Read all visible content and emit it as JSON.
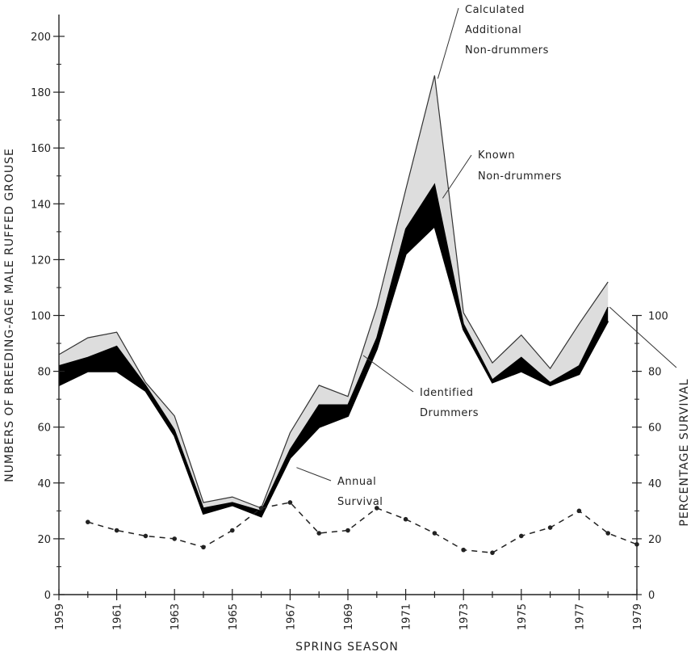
{
  "chart_data": {
    "type": "area",
    "xlabel": "SPRING SEASON",
    "ylabel_left": "NUMBERS OF BREEDING-AGE MALE RUFFED GROUSE",
    "ylabel_right": "PERCENTAGE SURVIVAL",
    "x": [
      1959,
      1960,
      1961,
      1962,
      1963,
      1964,
      1965,
      1966,
      1967,
      1968,
      1969,
      1970,
      1971,
      1972,
      1973,
      1974,
      1975,
      1976,
      1977,
      1978
    ],
    "x_ticks": [
      "1959",
      "1961",
      "1963",
      "1965",
      "1967",
      "1969",
      "1971",
      "1973",
      "1975",
      "1977",
      "1979"
    ],
    "ylim_left": [
      0,
      200
    ],
    "y_ticks_left": [
      "0",
      "20",
      "40",
      "60",
      "80",
      "100",
      "120",
      "140",
      "160",
      "180",
      "200"
    ],
    "ylim_right": [
      0,
      100
    ],
    "y_ticks_right": [
      "0",
      "20",
      "40",
      "60",
      "80",
      "100"
    ],
    "series": [
      {
        "name": "Identified Drummers",
        "axis": "left",
        "values": [
          75,
          80,
          80,
          73,
          57,
          29,
          32,
          28,
          49,
          60,
          64,
          88,
          122,
          132,
          95,
          76,
          80,
          75,
          79,
          98
        ]
      },
      {
        "name": "Known Non-drummers",
        "axis": "left",
        "values": [
          82,
          85,
          89,
          75,
          59,
          31,
          33,
          30,
          52,
          68,
          68,
          92,
          131,
          147,
          97,
          77,
          85,
          76,
          82,
          103
        ]
      },
      {
        "name": "Calculated Additional Non-drummers",
        "axis": "left",
        "values": [
          86,
          92,
          94,
          76,
          64,
          33,
          35,
          31,
          58,
          75,
          71,
          103,
          145,
          186,
          101,
          83,
          93,
          81,
          97,
          112
        ]
      },
      {
        "name": "Annual Survival",
        "axis": "right",
        "style": "dashed",
        "x": [
          1960,
          1961,
          1962,
          1963,
          1964,
          1965,
          1966,
          1967,
          1968,
          1969,
          1970,
          1971,
          1972,
          1973,
          1974,
          1975,
          1976,
          1977,
          1978,
          1979
        ],
        "values": [
          26,
          23,
          21,
          20,
          17,
          23,
          31,
          33,
          22,
          23,
          31,
          27,
          22,
          16,
          15,
          21,
          24,
          30,
          22,
          18
        ]
      }
    ],
    "annotations": [
      {
        "text": [
          "Calculated",
          "Additional",
          "Non-drummers"
        ]
      },
      {
        "text": [
          "Known",
          "Non-drummers"
        ]
      },
      {
        "text": [
          "Identified",
          "Drummers"
        ]
      },
      {
        "text": [
          "Annual",
          "Survival"
        ]
      }
    ],
    "colors": {
      "known": "#000000",
      "calculated": "#dddddd",
      "line": "#333333"
    }
  }
}
